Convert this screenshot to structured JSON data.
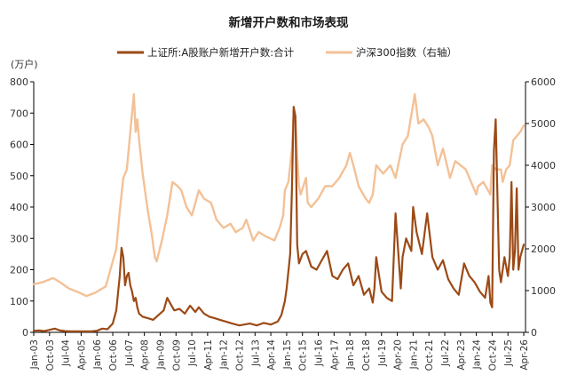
{
  "chart_data": {
    "type": "line",
    "title": "新增开户数和市场表现",
    "left_unit": "(万户)",
    "colors": {
      "accounts": "#9c4a16",
      "index": "#f3c197"
    },
    "x_tick_labels": [
      "Jan-03",
      "Oct-03",
      "Jul-04",
      "Apr-05",
      "Jan-06",
      "Oct-06",
      "Jul-07",
      "Apr-08",
      "Jan-09",
      "Oct-09",
      "Jul-10",
      "Apr-11",
      "Jan-12",
      "Oct-12",
      "Jul-13",
      "Apr-14",
      "Jan-15",
      "Oct-15",
      "Jul-16",
      "Apr-17",
      "Jan-18",
      "Oct-18",
      "Jul-19",
      "Apr-20",
      "Jan-21",
      "Oct-21",
      "Jul-22",
      "Apr-23",
      "Jan-24",
      "Oct-24",
      "Jul-25",
      "Apr-26"
    ],
    "y_left": {
      "min": 0,
      "max": 800,
      "step": 100,
      "ticks": [
        "0",
        "100",
        "200",
        "300",
        "400",
        "500",
        "600",
        "700",
        "800"
      ]
    },
    "y_right": {
      "min": 0,
      "max": 6000,
      "step": 1000,
      "ticks": [
        "0",
        "1000",
        "2000",
        "3000",
        "4000",
        "5000",
        "6000"
      ]
    },
    "legend_position": "top",
    "series": [
      {
        "name": "上证所:A股账户新增开户数:合计",
        "axis": "left",
        "x": [
          "2003-01",
          "2003-04",
          "2003-07",
          "2003-10",
          "2004-01",
          "2004-04",
          "2004-07",
          "2004-10",
          "2005-01",
          "2005-04",
          "2005-07",
          "2005-10",
          "2006-01",
          "2006-04",
          "2006-07",
          "2006-10",
          "2006-12",
          "2007-02",
          "2007-03",
          "2007-04",
          "2007-05",
          "2007-06",
          "2007-07",
          "2007-08",
          "2007-09",
          "2007-10",
          "2007-11",
          "2007-12",
          "2008-01",
          "2008-03",
          "2008-06",
          "2008-09",
          "2008-12",
          "2009-03",
          "2009-05",
          "2009-07",
          "2009-09",
          "2009-12",
          "2010-03",
          "2010-06",
          "2010-09",
          "2010-11",
          "2011-02",
          "2011-05",
          "2011-08",
          "2011-11",
          "2012-02",
          "2012-06",
          "2012-10",
          "2013-01",
          "2013-04",
          "2013-08",
          "2013-12",
          "2014-04",
          "2014-08",
          "2014-10",
          "2014-12",
          "2015-01",
          "2015-03",
          "2015-04",
          "2015-05",
          "2015-06",
          "2015-07",
          "2015-08",
          "2015-10",
          "2015-12",
          "2016-03",
          "2016-06",
          "2016-09",
          "2016-12",
          "2017-03",
          "2017-06",
          "2017-09",
          "2017-12",
          "2018-03",
          "2018-06",
          "2018-09",
          "2018-12",
          "2019-02",
          "2019-03",
          "2019-04",
          "2019-07",
          "2019-10",
          "2020-01",
          "2020-03",
          "2020-06",
          "2020-07",
          "2020-09",
          "2020-12",
          "2021-01",
          "2021-03",
          "2021-06",
          "2021-09",
          "2021-12",
          "2022-03",
          "2022-06",
          "2022-09",
          "2022-12",
          "2023-03",
          "2023-06",
          "2023-09",
          "2023-12",
          "2024-03",
          "2024-06",
          "2024-08",
          "2024-09",
          "2024-10",
          "2024-11",
          "2024-12",
          "2025-02",
          "2025-03",
          "2025-05",
          "2025-07",
          "2025-08",
          "2025-09",
          "2025-10",
          "2025-11",
          "2025-12",
          "2026-01",
          "2026-02",
          "2026-03",
          "2026-04"
        ],
        "values": [
          5,
          6,
          4,
          8,
          12,
          6,
          4,
          3,
          3,
          3,
          3,
          3,
          5,
          12,
          10,
          28,
          70,
          180,
          270,
          240,
          150,
          180,
          190,
          150,
          130,
          100,
          110,
          80,
          60,
          50,
          45,
          40,
          55,
          70,
          110,
          90,
          70,
          75,
          60,
          85,
          65,
          80,
          60,
          50,
          45,
          40,
          35,
          28,
          22,
          25,
          28,
          22,
          30,
          25,
          35,
          55,
          100,
          140,
          250,
          460,
          720,
          690,
          280,
          220,
          250,
          260,
          210,
          200,
          230,
          260,
          180,
          170,
          200,
          220,
          150,
          180,
          120,
          140,
          95,
          140,
          240,
          130,
          110,
          100,
          380,
          140,
          240,
          300,
          260,
          400,
          320,
          250,
          380,
          240,
          200,
          230,
          170,
          140,
          120,
          220,
          180,
          160,
          130,
          110,
          180,
          95,
          80,
          580,
          680,
          200,
          160,
          240,
          180,
          240,
          480,
          200,
          260,
          460,
          200,
          240,
          260,
          280
        ]
      },
      {
        "name": "沪深300指数（右轴）",
        "axis": "right",
        "x": [
          "2003-01",
          "2003-06",
          "2003-12",
          "2004-04",
          "2004-09",
          "2005-03",
          "2005-07",
          "2005-12",
          "2006-06",
          "2006-12",
          "2007-02",
          "2007-04",
          "2007-06",
          "2007-08",
          "2007-10",
          "2007-11",
          "2007-12",
          "2008-01",
          "2008-03",
          "2008-06",
          "2008-08",
          "2008-10",
          "2008-11",
          "2009-02",
          "2009-05",
          "2009-08",
          "2009-11",
          "2010-01",
          "2010-04",
          "2010-07",
          "2010-11",
          "2011-02",
          "2011-06",
          "2011-09",
          "2012-01",
          "2012-05",
          "2012-08",
          "2012-12",
          "2013-02",
          "2013-06",
          "2013-09",
          "2014-01",
          "2014-06",
          "2014-09",
          "2014-11",
          "2014-12",
          "2015-02",
          "2015-04",
          "2015-05",
          "2015-06",
          "2015-07",
          "2015-08",
          "2015-09",
          "2015-12",
          "2016-01",
          "2016-03",
          "2016-07",
          "2016-11",
          "2017-03",
          "2017-07",
          "2017-11",
          "2018-01",
          "2018-03",
          "2018-06",
          "2018-10",
          "2018-12",
          "2019-02",
          "2019-04",
          "2019-08",
          "2019-12",
          "2020-03",
          "2020-07",
          "2020-10",
          "2020-12",
          "2021-02",
          "2021-04",
          "2021-07",
          "2021-10",
          "2021-12",
          "2022-03",
          "2022-06",
          "2022-10",
          "2023-01",
          "2023-04",
          "2023-07",
          "2023-10",
          "2024-01",
          "2024-02",
          "2024-05",
          "2024-09",
          "2024-10",
          "2024-12",
          "2025-03",
          "2025-04",
          "2025-06",
          "2025-08",
          "2025-10",
          "2025-12",
          "2026-02",
          "2026-04"
        ],
        "values": [
          1150,
          1200,
          1300,
          1200,
          1050,
          950,
          870,
          950,
          1100,
          2000,
          2900,
          3700,
          3900,
          4800,
          5700,
          4800,
          5100,
          4600,
          3800,
          2900,
          2400,
          1800,
          1700,
          2200,
          2800,
          3600,
          3500,
          3400,
          3000,
          2800,
          3400,
          3200,
          3100,
          2700,
          2500,
          2600,
          2400,
          2500,
          2700,
          2200,
          2400,
          2300,
          2200,
          2500,
          2800,
          3400,
          3600,
          4400,
          5200,
          5100,
          4200,
          3500,
          3300,
          3700,
          3100,
          3000,
          3200,
          3500,
          3500,
          3700,
          4000,
          4300,
          4000,
          3500,
          3200,
          3100,
          3300,
          4000,
          3800,
          4000,
          3700,
          4500,
          4700,
          5200,
          5700,
          5000,
          5100,
          4900,
          4700,
          4000,
          4400,
          3700,
          4100,
          4000,
          3900,
          3600,
          3300,
          3500,
          3600,
          3300,
          4000,
          3900,
          3900,
          3600,
          3900,
          4000,
          4600,
          4700,
          4800,
          4950
        ]
      }
    ]
  }
}
